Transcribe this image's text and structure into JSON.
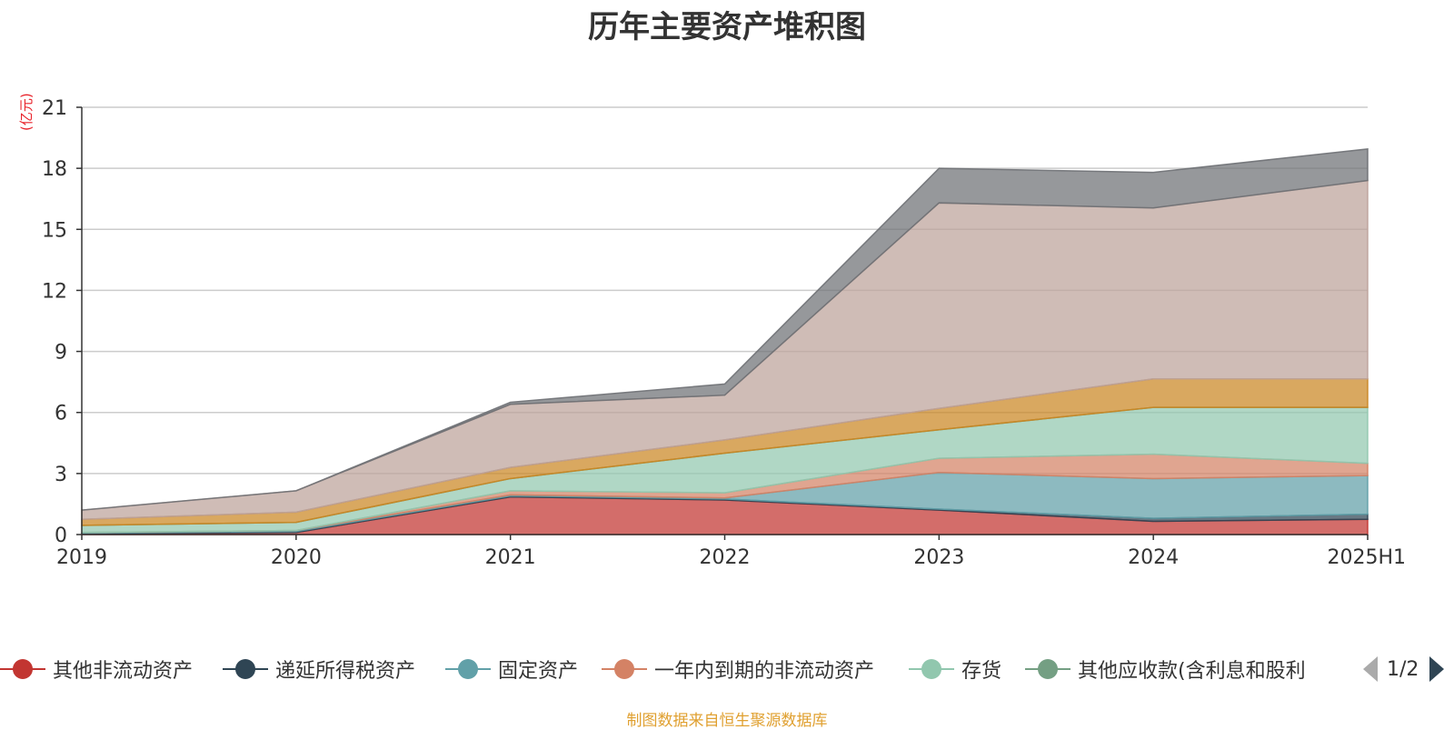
{
  "title": "历年主要资产堆积图",
  "unit_label": "(亿元)",
  "source": "制图数据来自恒生聚源数据库",
  "pager": {
    "text": "1/2"
  },
  "chart_data": {
    "type": "area",
    "stacked": true,
    "title": "历年主要资产堆积图",
    "ylabel": "(亿元)",
    "ylim": [
      0,
      21
    ],
    "yticks": [
      0,
      3,
      6,
      9,
      12,
      15,
      18,
      21
    ],
    "grid": true,
    "legend_position": "bottom",
    "categories": [
      "2019",
      "2020",
      "2021",
      "2022",
      "2023",
      "2024",
      "2025H1"
    ],
    "series": [
      {
        "name": "其他非流动资产",
        "color": "#c23531",
        "values": [
          0.05,
          0.1,
          1.85,
          1.7,
          1.2,
          0.65,
          0.75
        ]
      },
      {
        "name": "递延所得税资产",
        "color": "#2f4554",
        "values": [
          0.02,
          0.05,
          0.05,
          0.05,
          0.05,
          0.15,
          0.25
        ]
      },
      {
        "name": "固定资产",
        "color": "#61a0a8",
        "values": [
          0.03,
          0.05,
          0.05,
          0.05,
          1.8,
          1.95,
          1.9
        ]
      },
      {
        "name": "一年内到期的非流动资产",
        "color": "#d48265",
        "values": [
          0.0,
          0.0,
          0.2,
          0.25,
          0.7,
          1.2,
          0.6
        ]
      },
      {
        "name": "存货",
        "color": "#91c7ae",
        "values": [
          0.35,
          0.4,
          0.6,
          1.95,
          1.4,
          2.3,
          2.75
        ]
      },
      {
        "name": "其他应收款(含利息和股利",
        "color": "#749f83",
        "values": [
          0.0,
          0.0,
          0.0,
          0.0,
          0.0,
          0.0,
          0.0
        ]
      },
      {
        "name": "",
        "color": "#ca8622",
        "values": [
          0.3,
          0.5,
          0.55,
          0.65,
          1.05,
          1.4,
          1.4
        ]
      },
      {
        "name": "",
        "color": "#bda29a",
        "values": [
          0.45,
          1.05,
          3.1,
          2.2,
          10.1,
          8.4,
          9.75
        ]
      },
      {
        "name": "",
        "color": "#6e7074",
        "values": [
          0.0,
          0.0,
          0.1,
          0.55,
          1.7,
          1.75,
          1.55
        ]
      }
    ]
  }
}
